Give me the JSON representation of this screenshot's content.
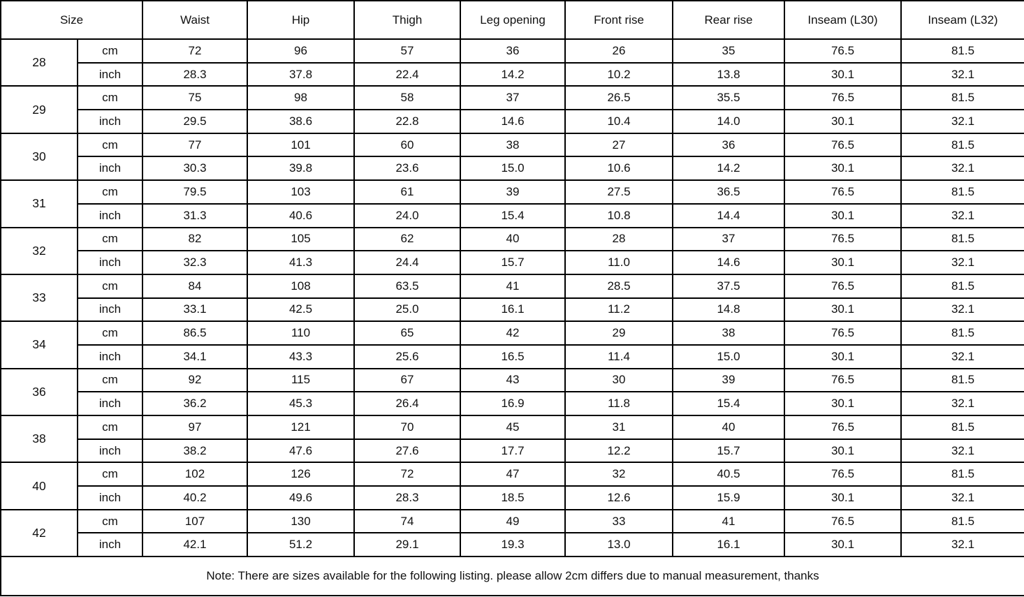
{
  "chart_data": {
    "type": "table",
    "columns": [
      "Size",
      "Waist",
      "Hip",
      "Thigh",
      "Leg opening",
      "Front rise",
      "Rear rise",
      "Inseam (L30)",
      "Inseam (L32)"
    ],
    "unit_row_labels": [
      "cm",
      "inch"
    ],
    "rows": [
      {
        "size": "28",
        "cm": [
          "72",
          "96",
          "57",
          "36",
          "26",
          "35",
          "76.5",
          "81.5"
        ],
        "inch": [
          "28.3",
          "37.8",
          "22.4",
          "14.2",
          "10.2",
          "13.8",
          "30.1",
          "32.1"
        ]
      },
      {
        "size": "29",
        "cm": [
          "75",
          "98",
          "58",
          "37",
          "26.5",
          "35.5",
          "76.5",
          "81.5"
        ],
        "inch": [
          "29.5",
          "38.6",
          "22.8",
          "14.6",
          "10.4",
          "14.0",
          "30.1",
          "32.1"
        ]
      },
      {
        "size": "30",
        "cm": [
          "77",
          "101",
          "60",
          "38",
          "27",
          "36",
          "76.5",
          "81.5"
        ],
        "inch": [
          "30.3",
          "39.8",
          "23.6",
          "15.0",
          "10.6",
          "14.2",
          "30.1",
          "32.1"
        ]
      },
      {
        "size": "31",
        "cm": [
          "79.5",
          "103",
          "61",
          "39",
          "27.5",
          "36.5",
          "76.5",
          "81.5"
        ],
        "inch": [
          "31.3",
          "40.6",
          "24.0",
          "15.4",
          "10.8",
          "14.4",
          "30.1",
          "32.1"
        ]
      },
      {
        "size": "32",
        "cm": [
          "82",
          "105",
          "62",
          "40",
          "28",
          "37",
          "76.5",
          "81.5"
        ],
        "inch": [
          "32.3",
          "41.3",
          "24.4",
          "15.7",
          "11.0",
          "14.6",
          "30.1",
          "32.1"
        ]
      },
      {
        "size": "33",
        "cm": [
          "84",
          "108",
          "63.5",
          "41",
          "28.5",
          "37.5",
          "76.5",
          "81.5"
        ],
        "inch": [
          "33.1",
          "42.5",
          "25.0",
          "16.1",
          "11.2",
          "14.8",
          "30.1",
          "32.1"
        ]
      },
      {
        "size": "34",
        "cm": [
          "86.5",
          "110",
          "65",
          "42",
          "29",
          "38",
          "76.5",
          "81.5"
        ],
        "inch": [
          "34.1",
          "43.3",
          "25.6",
          "16.5",
          "11.4",
          "15.0",
          "30.1",
          "32.1"
        ]
      },
      {
        "size": "36",
        "cm": [
          "92",
          "115",
          "67",
          "43",
          "30",
          "39",
          "76.5",
          "81.5"
        ],
        "inch": [
          "36.2",
          "45.3",
          "26.4",
          "16.9",
          "11.8",
          "15.4",
          "30.1",
          "32.1"
        ]
      },
      {
        "size": "38",
        "cm": [
          "97",
          "121",
          "70",
          "45",
          "31",
          "40",
          "76.5",
          "81.5"
        ],
        "inch": [
          "38.2",
          "47.6",
          "27.6",
          "17.7",
          "12.2",
          "15.7",
          "30.1",
          "32.1"
        ]
      },
      {
        "size": "40",
        "cm": [
          "102",
          "126",
          "72",
          "47",
          "32",
          "40.5",
          "76.5",
          "81.5"
        ],
        "inch": [
          "40.2",
          "49.6",
          "28.3",
          "18.5",
          "12.6",
          "15.9",
          "30.1",
          "32.1"
        ]
      },
      {
        "size": "42",
        "cm": [
          "107",
          "130",
          "74",
          "49",
          "33",
          "41",
          "76.5",
          "81.5"
        ],
        "inch": [
          "42.1",
          "51.2",
          "29.1",
          "19.3",
          "13.0",
          "16.1",
          "30.1",
          "32.1"
        ]
      }
    ],
    "note": "Note: There are sizes available for the following listing. please allow 2cm differs due to manual measurement, thanks",
    "layout": {
      "grid": "on",
      "header_row": "top",
      "units_per_size": 2
    }
  },
  "colors": {
    "background": "#ffffff",
    "border": "#000000",
    "text": "#111111"
  }
}
